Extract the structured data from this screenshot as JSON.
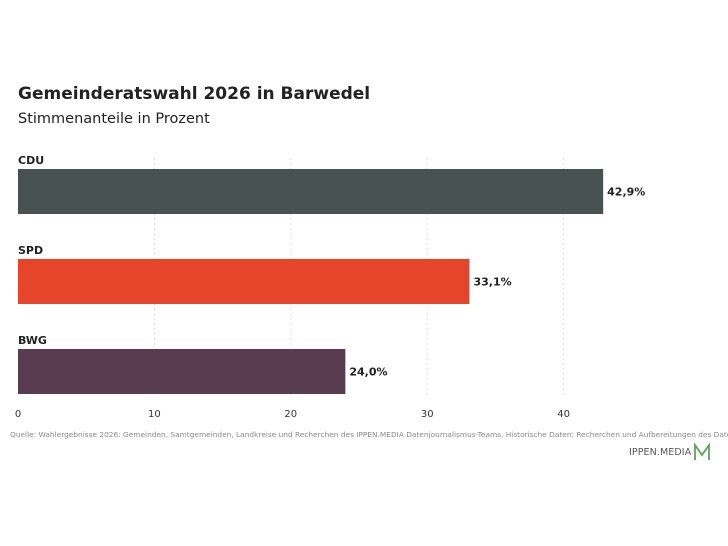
{
  "chart_data": {
    "type": "bar",
    "orientation": "horizontal",
    "title": "Gemeinderatswahl 2026 in Barwedel",
    "subtitle": "Stimmenanteile in Prozent",
    "categories": [
      "CDU",
      "SPD",
      "BWG"
    ],
    "values": [
      42.9,
      33.1,
      24.0
    ],
    "value_labels": [
      "42,9%",
      "33,1%",
      "24,0%"
    ],
    "colors": [
      "#465150",
      "#e6442b",
      "#5a3c50"
    ],
    "xlim": [
      0,
      45
    ],
    "xticks": [
      0,
      10,
      20,
      30,
      40
    ],
    "xtick_labels": [
      "0",
      "10",
      "20",
      "30",
      "40"
    ],
    "grid": true
  },
  "footer": {
    "source": "Quelle: Wahlergebnisse 2026: Gemeinden, Samtgemeinden, Landkreise und Recherchen des IPPEN.MEDIA Datenjournalismus-Teams. Historische Daten: Recherchen und Aufbereitungen des Daten",
    "brand": "IPPEN.MEDIA",
    "brand_color": "#5aa55a"
  }
}
